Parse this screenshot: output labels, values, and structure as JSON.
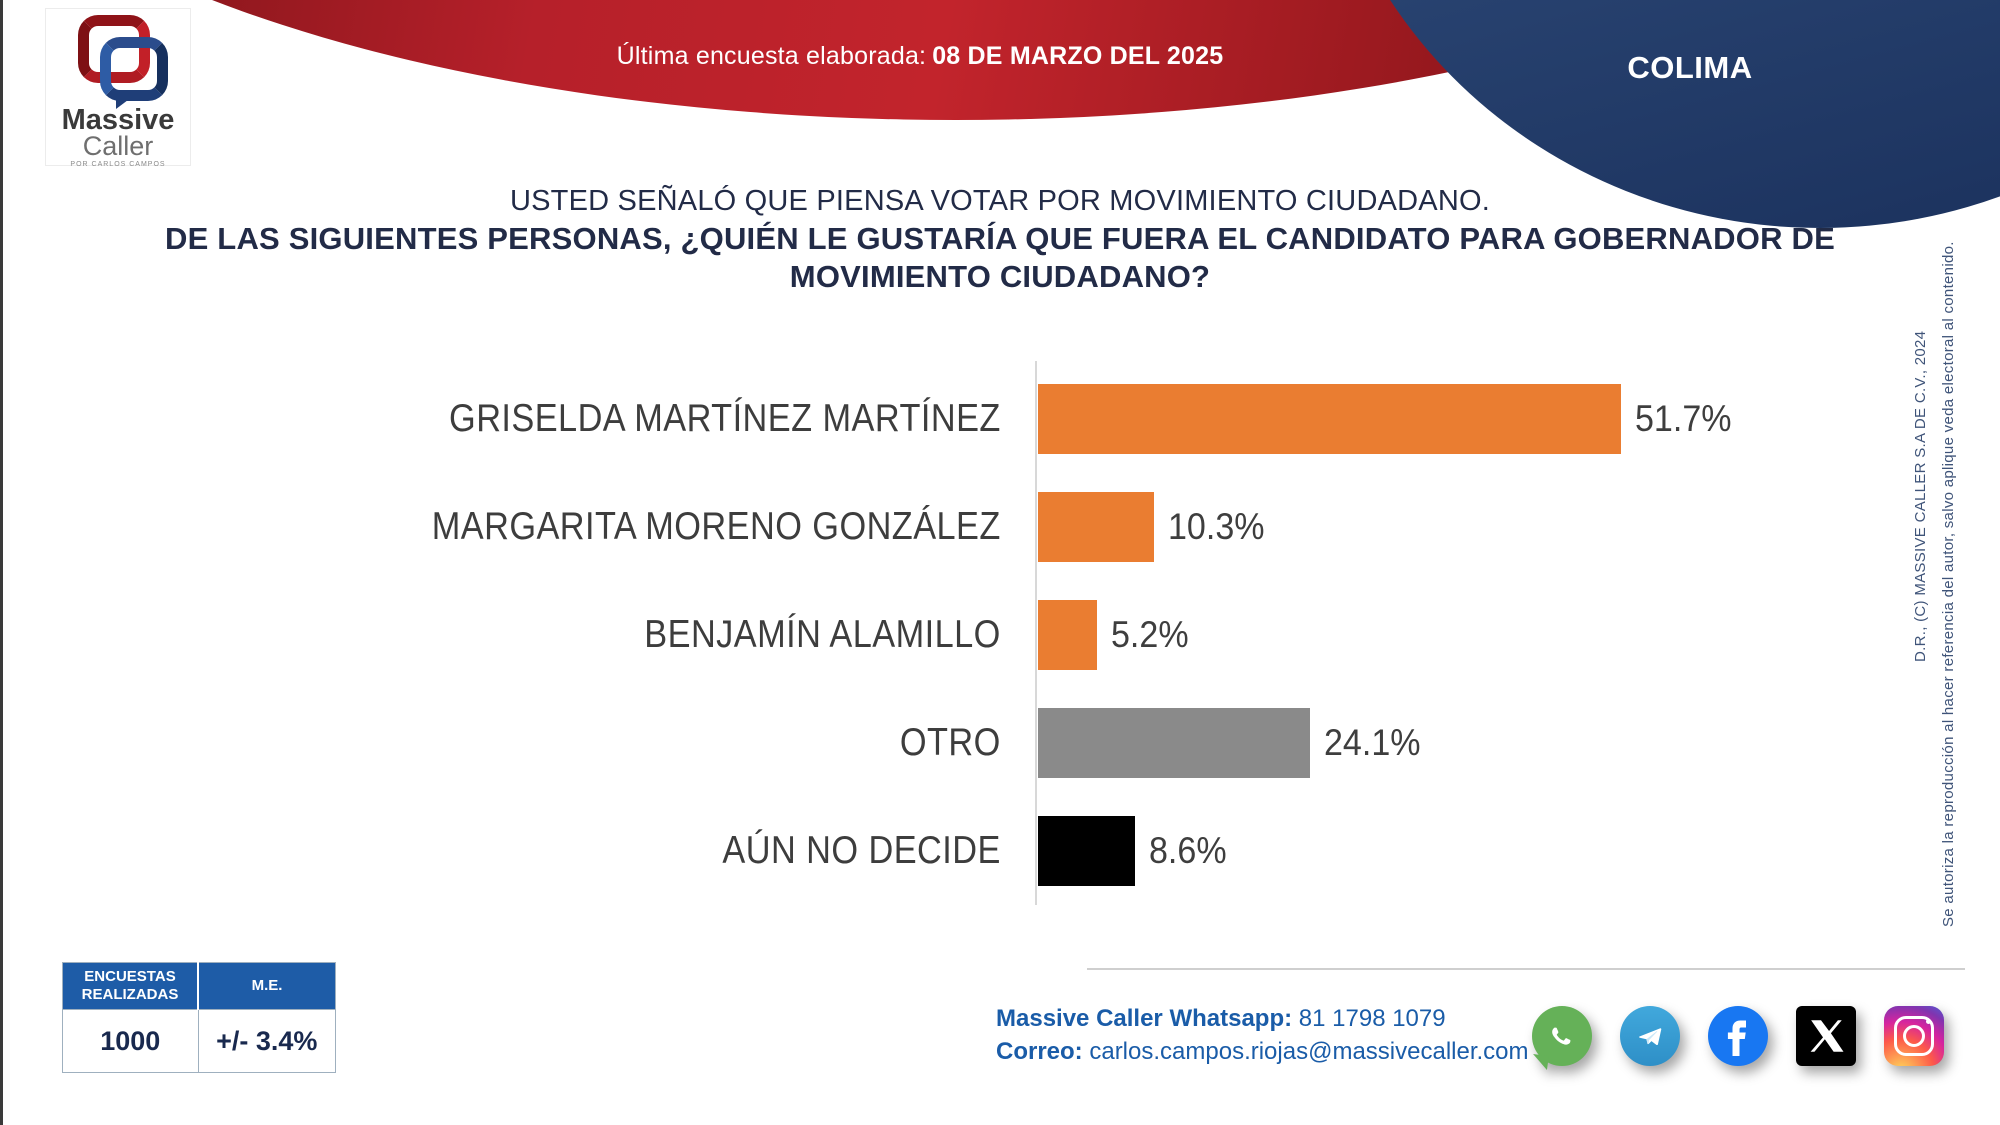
{
  "banner": {
    "survey_label": "Última encuesta elaborada:",
    "survey_date": "08 DE MARZO DEL 2025",
    "region": "COLIMA"
  },
  "logo": {
    "line1": "Massive",
    "line2": "Caller",
    "tagline": "POR CARLOS CAMPOS"
  },
  "title": {
    "line1": "USTED SEÑALÓ QUE PIENSA VOTAR POR MOVIMIENTO CIUDADANO.",
    "line2": "DE LAS SIGUIENTES PERSONAS, ¿QUIÉN LE GUSTARÍA QUE FUERA EL CANDIDATO PARA GOBERNADOR DE",
    "line3": "MOVIMIENTO CIUDADANO?"
  },
  "chart_data": {
    "type": "bar",
    "orientation": "horizontal",
    "title": "",
    "xlabel": "",
    "ylabel": "",
    "xlim": [
      0,
      60
    ],
    "grid": false,
    "legend": false,
    "categories": [
      "GRISELDA MARTÍNEZ MARTÍNEZ",
      "MARGARITA MORENO GONZÁLEZ",
      "BENJAMÍN ALAMILLO",
      "OTRO",
      "AÚN NO DECIDE"
    ],
    "values": [
      51.7,
      10.3,
      5.2,
      24.1,
      8.6
    ],
    "value_labels": [
      "51.7%",
      "10.3%",
      "5.2%",
      "24.1%",
      "8.6%"
    ],
    "colors": [
      "#ea7d31",
      "#ea7d31",
      "#ea7d31",
      "#8a8a8a",
      "#000000"
    ]
  },
  "stats_table": {
    "header_col1": "ENCUESTAS REALIZADAS",
    "header_col2": "M.E.",
    "value_col1": "1000",
    "value_col2": "+/- 3.4%"
  },
  "contact": {
    "whatsapp_label": "Massive Caller Whatsapp:",
    "whatsapp_number": "81 1798 1079",
    "correo_label": "Correo:",
    "email": "carlos.campos.riojas@massivecaller.com"
  },
  "social": {
    "icons": [
      "whatsapp-icon",
      "telegram-icon",
      "facebook-icon",
      "x-icon",
      "instagram-icon"
    ]
  },
  "copyright": {
    "line1": "D.R., (C) MASSIVE CALLER S.A DE C.V., 2024",
    "line2": "Se autoriza la reproducción al hacer referencia del autor, salvo aplique veda electoral al contenido."
  },
  "theme": {
    "banner_red": "#b6202a",
    "banner_blue": "#1d3460",
    "table_header_blue": "#1e5ca7",
    "contact_blue": "#1a5ca8",
    "title_navy": "#222b47",
    "bar_orange": "#ea7d31",
    "bar_gray": "#8a8a8a",
    "bar_black": "#000000"
  }
}
